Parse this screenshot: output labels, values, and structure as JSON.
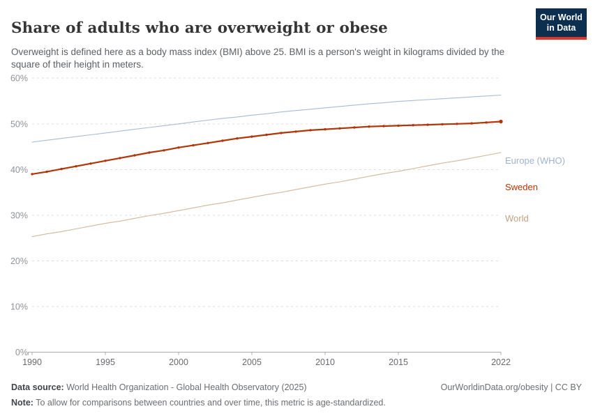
{
  "header": {
    "title": "Share of adults who are overweight or obese",
    "subtitle": "Overweight is defined here as a body mass index (BMI) above 25. BMI is a person's weight in kilograms divided by the square of their height in meters.",
    "logo": {
      "line1": "Our World",
      "line2": "in Data"
    }
  },
  "footer": {
    "data_source_label": "Data source:",
    "data_source_text": " World Health Organization - Global Health Observatory (2025)",
    "right_text": "OurWorldinData.org/obesity | CC BY",
    "note_label": "Note:",
    "note_text": " To allow for comparisons between countries and over time, this metric is age-standardized."
  },
  "colors": {
    "background": "#ffffff",
    "grid": "#dedede",
    "axis": "#ababab",
    "y_tick_text": "#8f9297",
    "x_tick_text": "#67696d",
    "title_text": "#353535",
    "logo_bg": "#0c2e4f",
    "logo_stripe": "#e0352b"
  },
  "chart_data": {
    "type": "line",
    "title": "Share of adults who are overweight or obese",
    "xlabel": "",
    "ylabel": "",
    "ylim": [
      0,
      60
    ],
    "grid": true,
    "legend_position": "end-labels",
    "yticks": [
      0,
      10,
      20,
      30,
      40,
      50,
      60
    ],
    "y_tick_labels": [
      "0%",
      "10%",
      "20%",
      "30%",
      "40%",
      "50%",
      "60%"
    ],
    "xticks": [
      1990,
      1995,
      2000,
      2005,
      2010,
      2015,
      2022
    ],
    "x_tick_labels": [
      "1990",
      "1995",
      "2000",
      "2005",
      "2010",
      "2015",
      "2022"
    ],
    "x": [
      1990,
      1991,
      1992,
      1993,
      1994,
      1995,
      1996,
      1997,
      1998,
      1999,
      2000,
      2001,
      2002,
      2003,
      2004,
      2005,
      2006,
      2007,
      2008,
      2009,
      2010,
      2011,
      2012,
      2013,
      2014,
      2015,
      2016,
      2017,
      2018,
      2019,
      2020,
      2021,
      2022
    ],
    "series": [
      {
        "name": "Europe (WHO)",
        "color": "#a7bbd5",
        "label_color": "#9fb3cd",
        "markers": false,
        "width": 1.1,
        "values": [
          46.0,
          46.4,
          46.8,
          47.2,
          47.6,
          48.0,
          48.4,
          48.8,
          49.2,
          49.6,
          50.0,
          50.4,
          50.8,
          51.2,
          51.5,
          51.9,
          52.2,
          52.6,
          52.9,
          53.2,
          53.5,
          53.8,
          54.1,
          54.4,
          54.6,
          54.9,
          55.1,
          55.3,
          55.5,
          55.7,
          55.9,
          56.1,
          56.3
        ]
      },
      {
        "name": "Sweden",
        "color": "#b13507",
        "label_color": "#b13507",
        "markers": true,
        "width": 2.2,
        "values": [
          39.0,
          39.5,
          40.1,
          40.7,
          41.3,
          41.9,
          42.5,
          43.1,
          43.7,
          44.2,
          44.8,
          45.3,
          45.8,
          46.3,
          46.8,
          47.2,
          47.6,
          48.0,
          48.3,
          48.6,
          48.8,
          49.0,
          49.2,
          49.4,
          49.5,
          49.6,
          49.7,
          49.8,
          49.9,
          50.0,
          50.1,
          50.3,
          50.5
        ]
      },
      {
        "name": "World",
        "color": "#d3b79b",
        "label_color": "#c3a183",
        "markers": false,
        "width": 1.1,
        "values": [
          25.3,
          25.9,
          26.4,
          27.0,
          27.6,
          28.2,
          28.7,
          29.3,
          29.9,
          30.4,
          31.0,
          31.6,
          32.2,
          32.7,
          33.3,
          33.9,
          34.5,
          35.0,
          35.6,
          36.2,
          36.8,
          37.3,
          37.9,
          38.5,
          39.1,
          39.6,
          40.2,
          40.8,
          41.4,
          41.9,
          42.5,
          43.1,
          43.7
        ]
      }
    ]
  }
}
